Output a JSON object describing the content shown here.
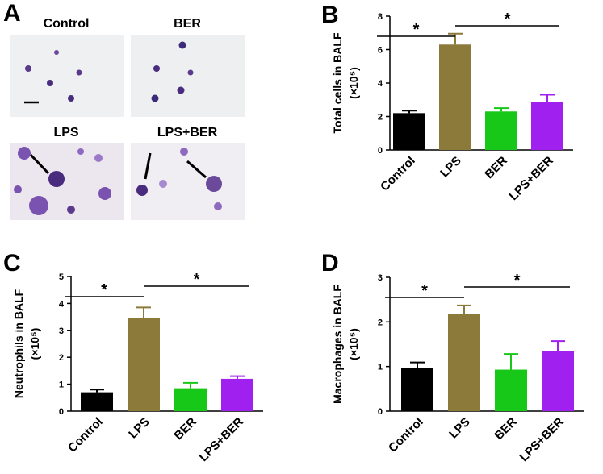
{
  "panel_a": {
    "label": "A",
    "images": [
      "Control",
      "BER",
      "LPS",
      "LPS+BER"
    ]
  },
  "chart_data": [
    {
      "type": "bar",
      "panel": "B",
      "ylabel": [
        "Total cells in BALF",
        "(×10⁵)"
      ],
      "categories": [
        "Control",
        "LPS",
        "BER",
        "LPS+BER"
      ],
      "values": [
        2.2,
        6.3,
        2.3,
        2.85
      ],
      "errors": [
        0.15,
        0.65,
        0.2,
        0.45
      ],
      "colors": [
        "#000000",
        "#8b7a3a",
        "#18c818",
        "#a020f0"
      ],
      "ylim": [
        0,
        8
      ],
      "yticks": [
        0,
        2,
        4,
        6,
        8
      ],
      "significance": [
        {
          "from": 0,
          "to": 1,
          "label": "*"
        },
        {
          "from": 1,
          "to": 3,
          "label": "*"
        }
      ]
    },
    {
      "type": "bar",
      "panel": "C",
      "ylabel": [
        "Neutrophils in BALF",
        "(×10⁵)"
      ],
      "categories": [
        "Control",
        "LPS",
        "BER",
        "LPS+BER"
      ],
      "values": [
        0.7,
        3.45,
        0.85,
        1.2
      ],
      "errors": [
        0.1,
        0.4,
        0.2,
        0.1
      ],
      "colors": [
        "#000000",
        "#8b7a3a",
        "#18c818",
        "#a020f0"
      ],
      "ylim": [
        0,
        5
      ],
      "yticks": [
        0,
        1,
        2,
        3,
        4,
        5
      ],
      "significance": [
        {
          "from": 0,
          "to": 1,
          "label": "*"
        },
        {
          "from": 1,
          "to": 3,
          "label": "*"
        }
      ]
    },
    {
      "type": "bar",
      "panel": "D",
      "ylabel": [
        "Macrophages in BALF",
        "(×10⁵)"
      ],
      "categories": [
        "Control",
        "LPS",
        "BER",
        "LPS+BER"
      ],
      "values": [
        0.97,
        2.17,
        0.93,
        1.35
      ],
      "errors": [
        0.12,
        0.2,
        0.35,
        0.22
      ],
      "colors": [
        "#000000",
        "#8b7a3a",
        "#18c818",
        "#a020f0"
      ],
      "ylim": [
        0,
        3
      ],
      "yticks": [
        0,
        1,
        2,
        3
      ],
      "significance": [
        {
          "from": 0,
          "to": 1,
          "label": "*"
        },
        {
          "from": 1,
          "to": 3,
          "label": "*"
        }
      ]
    }
  ]
}
